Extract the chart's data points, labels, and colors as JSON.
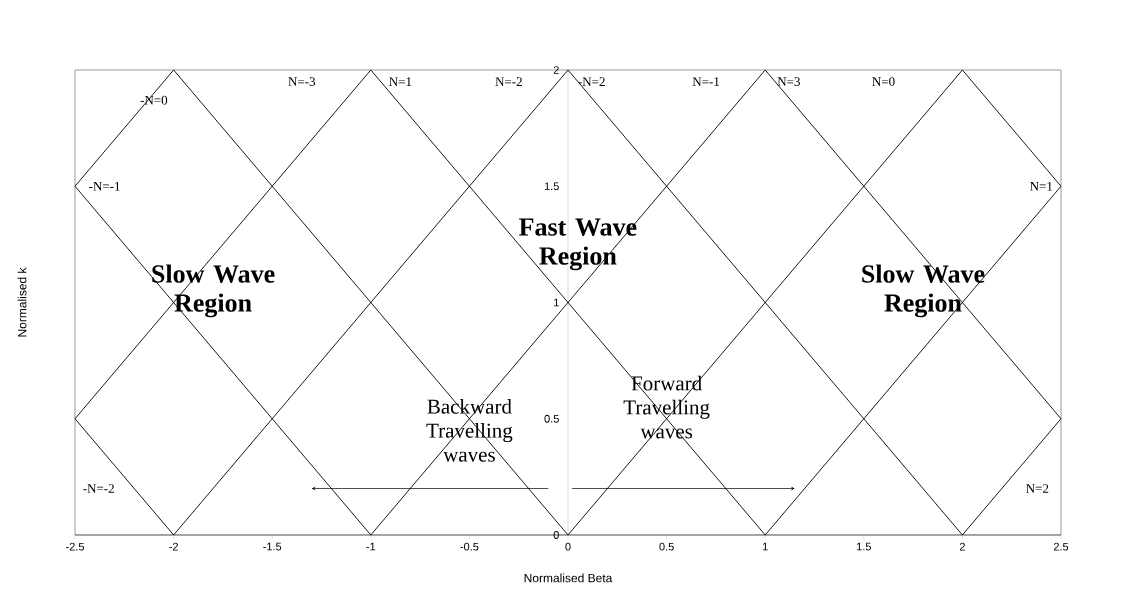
{
  "chart_data": {
    "type": "line",
    "xlabel": "Normalised Beta",
    "ylabel": "Normalised k",
    "xlim": [
      -2.5,
      2.5
    ],
    "ylim": [
      0,
      2
    ],
    "xticks": [
      -2.5,
      -2,
      -1.5,
      -1,
      -0.5,
      0,
      0.5,
      1,
      1.5,
      2,
      2.5
    ],
    "yticks": [
      0,
      0.5,
      1,
      1.5,
      2
    ],
    "series": [
      {
        "color": "#000000",
        "x": [
          -2.5,
          -2
        ],
        "values": [
          1.5,
          2
        ]
      },
      {
        "color": "#000000",
        "x": [
          -2.5,
          -1
        ],
        "values": [
          0.5,
          2
        ]
      },
      {
        "color": "#000000",
        "x": [
          -2,
          0
        ],
        "values": [
          0,
          2
        ]
      },
      {
        "color": "#000000",
        "x": [
          -1,
          1
        ],
        "values": [
          0,
          2
        ]
      },
      {
        "color": "#000000",
        "x": [
          0,
          2
        ],
        "values": [
          0,
          2
        ]
      },
      {
        "color": "#000000",
        "x": [
          1,
          2.5
        ],
        "values": [
          0,
          1.5
        ]
      },
      {
        "color": "#000000",
        "x": [
          2,
          2.5
        ],
        "values": [
          0,
          0.5
        ]
      },
      {
        "color": "#000000",
        "x": [
          -2.5,
          -2
        ],
        "values": [
          0.5,
          0
        ]
      },
      {
        "color": "#000000",
        "x": [
          -2.5,
          -1
        ],
        "values": [
          1.5,
          0
        ]
      },
      {
        "color": "#000000",
        "x": [
          -2,
          0
        ],
        "values": [
          2,
          0
        ]
      },
      {
        "color": "#000000",
        "x": [
          -1,
          1
        ],
        "values": [
          2,
          0
        ]
      },
      {
        "color": "#000000",
        "x": [
          0,
          2
        ],
        "values": [
          2,
          0
        ]
      },
      {
        "color": "#000000",
        "x": [
          1,
          2.5
        ],
        "values": [
          2,
          0.5
        ]
      },
      {
        "color": "#000000",
        "x": [
          2,
          2.5
        ],
        "values": [
          2,
          1.5
        ]
      }
    ],
    "annotations": [
      "Slow Wave Region",
      "Fast Wave Region",
      "Slow Wave Region",
      "Backward Travelling waves",
      "Forward Travelling waves",
      "-N=0",
      "N=-3",
      "N=1",
      "N=-2",
      "-N=2",
      "N=-1",
      "N=3",
      "N=0",
      "-N=-1",
      "N=1",
      "-N=-2",
      "N=2"
    ]
  }
}
